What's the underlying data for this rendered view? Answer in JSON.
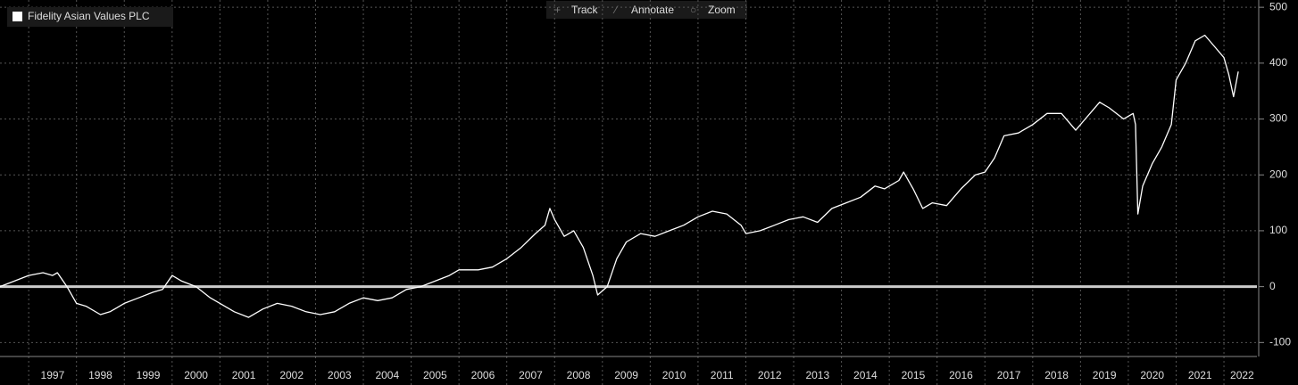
{
  "toolbar": [
    "Track",
    "Annotate",
    "Zoom"
  ],
  "chart_data": {
    "type": "line",
    "x": [
      1996.4,
      1996.7,
      1997.0,
      1997.3,
      1997.5,
      1997.6,
      1997.8,
      1998.0,
      1998.2,
      1998.5,
      1998.7,
      1999.0,
      1999.3,
      1999.6,
      1999.8,
      2000.0,
      2000.2,
      2000.5,
      2000.8,
      2001.0,
      2001.3,
      2001.6,
      2001.9,
      2002.2,
      2002.5,
      2002.8,
      2003.1,
      2003.4,
      2003.7,
      2004.0,
      2004.3,
      2004.6,
      2004.9,
      2005.2,
      2005.5,
      2005.8,
      2006.0,
      2006.4,
      2006.7,
      2007.0,
      2007.3,
      2007.6,
      2007.8,
      2007.9,
      2008.0,
      2008.2,
      2008.4,
      2008.6,
      2008.8,
      2008.9,
      2009.1,
      2009.3,
      2009.5,
      2009.8,
      2010.1,
      2010.4,
      2010.7,
      2011.0,
      2011.3,
      2011.6,
      2011.9,
      2012.0,
      2012.3,
      2012.6,
      2012.9,
      2013.2,
      2013.5,
      2013.8,
      2014.1,
      2014.4,
      2014.7,
      2014.9,
      2015.2,
      2015.3,
      2015.5,
      2015.7,
      2015.9,
      2016.2,
      2016.5,
      2016.8,
      2017.0,
      2017.2,
      2017.4,
      2017.7,
      2018.0,
      2018.3,
      2018.6,
      2018.9,
      2019.1,
      2019.4,
      2019.6,
      2019.9,
      2020.0,
      2020.1,
      2020.15,
      2020.2,
      2020.3,
      2020.5,
      2020.7,
      2020.9,
      2021.0,
      2021.2,
      2021.4,
      2021.6,
      2021.8,
      2022.0,
      2022.1,
      2022.2,
      2022.3
    ],
    "series": [
      {
        "name": "Fidelity Asian Values PLC",
        "color": "#ffffff",
        "values": [
          0,
          10,
          20,
          25,
          20,
          25,
          0,
          -30,
          -35,
          -50,
          -45,
          -30,
          -20,
          -10,
          -5,
          20,
          10,
          0,
          -20,
          -30,
          -45,
          -55,
          -40,
          -30,
          -35,
          -45,
          -50,
          -45,
          -30,
          -20,
          -25,
          -20,
          -5,
          0,
          10,
          20,
          30,
          30,
          35,
          50,
          70,
          95,
          110,
          140,
          120,
          90,
          100,
          70,
          20,
          -15,
          0,
          50,
          80,
          95,
          90,
          100,
          110,
          125,
          135,
          130,
          110,
          95,
          100,
          110,
          120,
          125,
          115,
          140,
          150,
          160,
          180,
          175,
          190,
          205,
          175,
          140,
          150,
          145,
          175,
          200,
          205,
          230,
          270,
          275,
          290,
          310,
          310,
          280,
          300,
          330,
          320,
          300,
          305,
          310,
          290,
          130,
          180,
          220,
          250,
          290,
          370,
          400,
          440,
          450,
          430,
          410,
          380,
          340,
          385
        ]
      }
    ],
    "xlim": [
      1996.4,
      2022.69
    ],
    "xticks": [
      {
        "value": 1997.5,
        "label": "1997"
      },
      {
        "value": 1998.5,
        "label": "1998"
      },
      {
        "value": 1999.5,
        "label": "1999"
      },
      {
        "value": 2000.5,
        "label": "2000"
      },
      {
        "value": 2001.5,
        "label": "2001"
      },
      {
        "value": 2002.5,
        "label": "2002"
      },
      {
        "value": 2003.5,
        "label": "2003"
      },
      {
        "value": 2004.5,
        "label": "2004"
      },
      {
        "value": 2005.5,
        "label": "2005"
      },
      {
        "value": 2006.5,
        "label": "2006"
      },
      {
        "value": 2007.5,
        "label": "2007"
      },
      {
        "value": 2008.5,
        "label": "2008"
      },
      {
        "value": 2009.5,
        "label": "2009"
      },
      {
        "value": 2010.5,
        "label": "2010"
      },
      {
        "value": 2011.5,
        "label": "2011"
      },
      {
        "value": 2012.5,
        "label": "2012"
      },
      {
        "value": 2013.5,
        "label": "2013"
      },
      {
        "value": 2014.5,
        "label": "2014"
      },
      {
        "value": 2015.5,
        "label": "2015"
      },
      {
        "value": 2016.5,
        "label": "2016"
      },
      {
        "value": 2017.5,
        "label": "2017"
      },
      {
        "value": 2018.5,
        "label": "2018"
      },
      {
        "value": 2019.5,
        "label": "2019"
      },
      {
        "value": 2020.5,
        "label": "2020"
      },
      {
        "value": 2021.5,
        "label": "2021"
      },
      {
        "value": 2022.38,
        "label": "2022"
      }
    ],
    "xgrid": [
      1997,
      1998,
      1999,
      2000,
      2001,
      2002,
      2003,
      2004,
      2005,
      2006,
      2007,
      2008,
      2009,
      2010,
      2011,
      2012,
      2013,
      2014,
      2015,
      2016,
      2017,
      2018,
      2019,
      2020,
      2021,
      2022
    ],
    "ylim": [
      -125,
      513
    ],
    "yticks": [
      -100,
      0,
      100,
      200,
      300,
      400,
      500
    ],
    "reference_line": 0,
    "grid": true,
    "legend": "top-left"
  }
}
